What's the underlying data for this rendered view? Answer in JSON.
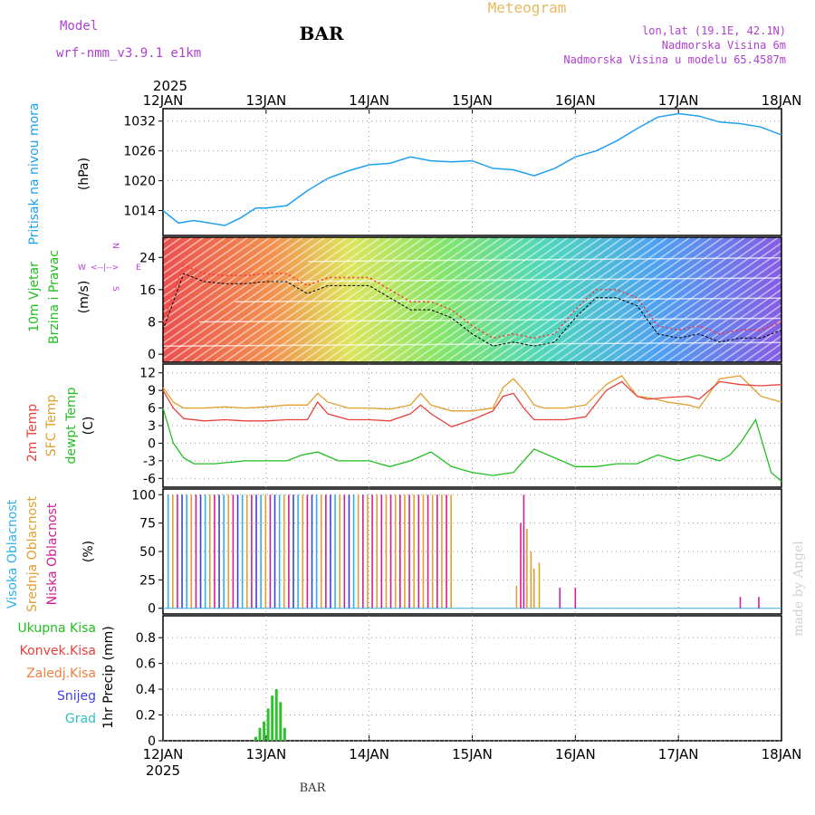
{
  "header": {
    "model_label": "Model",
    "model_name": "wrf-nmm_v3.9.1  e1km",
    "station": "BAR",
    "title": "Meteogram",
    "lonlat": "lon,lat (19.1E, 42.1N)",
    "elev": "Nadmorska Visina 6m",
    "elev_model": "Nadmorska Visina u modelu 65.4587m",
    "footer_station": "BAR",
    "watermark": "made by Angel"
  },
  "colors": {
    "pressure": "#1ea0f0",
    "temp2m": "#e8413c",
    "sfc": "#e0a030",
    "dew": "#20c020",
    "precip": "#30c030",
    "purple": "#b040d0",
    "high": "#30b0e8",
    "mid": "#e0a030",
    "low": "#d02090"
  },
  "chart_data": [
    {
      "type": "line",
      "panel": "pressure",
      "x_ticks": [
        "12JAN",
        "13JAN",
        "14JAN",
        "15JAN",
        "16JAN",
        "17JAN",
        "18JAN"
      ],
      "x_year": "2025",
      "ylabel_left": "Pritisak na nivou mora",
      "ylabel_unit": "(hPa)",
      "yticks": [
        1014,
        1020,
        1026,
        1032
      ],
      "ylim": [
        1009,
        1034.5
      ],
      "series": [
        {
          "values_t": [
            0,
            0.15,
            0.3,
            0.45,
            0.6,
            0.75,
            0.9,
            1.0,
            1.2,
            1.4,
            1.6,
            1.8,
            2.0,
            2.2,
            2.4,
            2.6,
            2.8,
            3.0,
            3.2,
            3.4,
            3.6,
            3.8,
            4.0,
            4.2,
            4.4,
            4.6,
            4.8,
            5.0,
            5.2,
            5.4,
            5.6,
            5.8,
            6.0
          ],
          "values": [
            1014.0,
            1011.5,
            1012.0,
            1011.5,
            1011.0,
            1012.5,
            1014.5,
            1014.5,
            1015.0,
            1018.0,
            1020.5,
            1022.0,
            1023.2,
            1023.5,
            1024.8,
            1024.0,
            1023.8,
            1024.0,
            1022.5,
            1022.2,
            1021.0,
            1022.5,
            1024.8,
            1026.0,
            1028.0,
            1030.5,
            1032.8,
            1033.5,
            1033.0,
            1031.8,
            1031.5,
            1030.8,
            1029.2
          ]
        }
      ]
    },
    {
      "type": "line",
      "panel": "wind",
      "ylabel_left": "10m Vjetar",
      "ylabel_left2": "Brzina i Pravac",
      "ylabel_unit": "(m/s)",
      "compass": [
        "W",
        "E",
        "N",
        "S"
      ],
      "yticks": [
        0,
        8,
        16,
        24
      ],
      "ylim": [
        -2,
        29
      ],
      "series": [
        {
          "name": "speed",
          "values_t": [
            0,
            0.2,
            0.4,
            0.6,
            0.8,
            1.0,
            1.2,
            1.4,
            1.6,
            1.8,
            2.0,
            2.2,
            2.4,
            2.6,
            2.8,
            3.0,
            3.2,
            3.4,
            3.6,
            3.8,
            4.0,
            4.2,
            4.4,
            4.6,
            4.8,
            5.0,
            5.2,
            5.4,
            5.6,
            5.8,
            6.0
          ],
          "values": [
            6,
            20,
            18,
            17.5,
            17.5,
            18,
            18,
            15,
            17,
            17,
            17,
            14,
            11,
            11,
            9,
            5,
            2,
            3,
            2,
            3,
            9,
            14,
            14,
            12,
            5,
            4,
            5,
            3,
            4,
            4,
            6
          ]
        }
      ]
    },
    {
      "type": "line",
      "panel": "temperature",
      "ylabel_a": "2m Temp",
      "ylabel_b": "SFC Temp",
      "ylabel_c": "dewpt Temp",
      "ylabel_unit": "(C)",
      "yticks": [
        -6,
        -3,
        0,
        3,
        6,
        9,
        12
      ],
      "ylim": [
        -7.5,
        13.5
      ],
      "series": [
        {
          "name": "2m Temp",
          "values_t": [
            0,
            0.1,
            0.2,
            0.4,
            0.6,
            0.8,
            1.0,
            1.2,
            1.4,
            1.5,
            1.6,
            1.8,
            2.0,
            2.2,
            2.4,
            2.5,
            2.6,
            2.8,
            3.0,
            3.2,
            3.3,
            3.4,
            3.5,
            3.6,
            3.7,
            3.9,
            4.1,
            4.3,
            4.45,
            4.6,
            4.7,
            4.9,
            5.1,
            5.2,
            5.4,
            5.6,
            5.8,
            6.0
          ],
          "values": [
            9,
            6,
            4.2,
            3.8,
            4,
            3.8,
            3.8,
            4,
            4,
            7,
            5,
            4,
            4,
            3.8,
            5,
            6.5,
            5,
            2.8,
            4,
            5.5,
            8,
            8.5,
            6,
            4,
            4,
            4,
            4.5,
            9,
            10.5,
            8,
            7.5,
            7.8,
            8,
            7.5,
            10.5,
            10,
            9.8,
            10
          ]
        },
        {
          "name": "SFC Temp",
          "values_t": [
            0,
            0.1,
            0.2,
            0.4,
            0.6,
            0.8,
            1.0,
            1.2,
            1.4,
            1.5,
            1.6,
            1.8,
            2.0,
            2.2,
            2.4,
            2.5,
            2.6,
            2.8,
            3.0,
            3.2,
            3.3,
            3.4,
            3.5,
            3.6,
            3.7,
            3.9,
            4.1,
            4.3,
            4.45,
            4.6,
            4.7,
            4.9,
            5.1,
            5.2,
            5.4,
            5.6,
            5.8,
            6.0
          ],
          "values": [
            9.5,
            7,
            6,
            6,
            6.2,
            6,
            6.2,
            6.5,
            6.5,
            8.5,
            7,
            6,
            6,
            5.8,
            6.5,
            8.5,
            6.5,
            5.5,
            5.5,
            6,
            9.5,
            11,
            9,
            6.5,
            6,
            6,
            6.5,
            10,
            11.5,
            8,
            7.8,
            7,
            6.5,
            6,
            11,
            11.5,
            8,
            7
          ]
        },
        {
          "name": "dewpt Temp",
          "values_t": [
            0,
            0.1,
            0.2,
            0.3,
            0.5,
            0.8,
            1.0,
            1.2,
            1.35,
            1.5,
            1.7,
            1.9,
            2.0,
            2.2,
            2.4,
            2.6,
            2.8,
            3.0,
            3.2,
            3.4,
            3.6,
            3.8,
            4.0,
            4.2,
            4.4,
            4.6,
            4.8,
            5.0,
            5.2,
            5.4,
            5.5,
            5.6,
            5.75,
            5.9,
            6.0
          ],
          "values": [
            6,
            0,
            -2.5,
            -3.5,
            -3.5,
            -3,
            -3,
            -3,
            -2,
            -1.5,
            -3,
            -3,
            -3,
            -4,
            -3,
            -1.5,
            -4,
            -5,
            -5.5,
            -5,
            -1,
            -2.5,
            -4,
            -4,
            -3.5,
            -3.5,
            -2,
            -3,
            -2,
            -3,
            -2,
            0,
            4,
            -5,
            -6.5
          ]
        }
      ]
    },
    {
      "type": "bar",
      "panel": "clouds",
      "ylabel_a": "Visoka Oblacnost",
      "ylabel_b": "Srednja Oblacnost",
      "ylabel_c": "Niska Oblacnost",
      "ylabel_unit": "(%)",
      "yticks": [
        0,
        25,
        50,
        75,
        100
      ],
      "ylim": [
        -5,
        105
      ],
      "spikes": [
        {
          "t": 3.43,
          "v": 20,
          "layer": "mid"
        },
        {
          "t": 3.47,
          "v": 75,
          "layer": "low"
        },
        {
          "t": 3.5,
          "v": 100,
          "layer": "low"
        },
        {
          "t": 3.53,
          "v": 70,
          "layer": "mid"
        },
        {
          "t": 3.57,
          "v": 50,
          "layer": "mid"
        },
        {
          "t": 3.6,
          "v": 35,
          "layer": "mid"
        },
        {
          "t": 3.65,
          "v": 40,
          "layer": "mid"
        },
        {
          "t": 3.85,
          "v": 18,
          "layer": "low"
        },
        {
          "t": 4.0,
          "v": 18,
          "layer": "low"
        },
        {
          "t": 5.6,
          "v": 10,
          "layer": "low"
        },
        {
          "t": 5.78,
          "v": 10,
          "layer": "low"
        }
      ]
    },
    {
      "type": "bar",
      "panel": "precip",
      "legend": [
        "Ukupna  Kisa",
        "Konvek.Kisa",
        "Zaledj.Kisa",
        "Snijeg",
        "Grad"
      ],
      "ylabel": "1hr Precip (mm)",
      "yticks": [
        0,
        0.2,
        0.4,
        0.6,
        0.8
      ],
      "ylim": [
        0,
        0.97
      ],
      "times": [
        0.9,
        0.94,
        0.98,
        1.02,
        1.06,
        1.1,
        1.14,
        1.18
      ],
      "values": [
        0.03,
        0.1,
        0.15,
        0.25,
        0.35,
        0.4,
        0.3,
        0.1
      ]
    }
  ]
}
